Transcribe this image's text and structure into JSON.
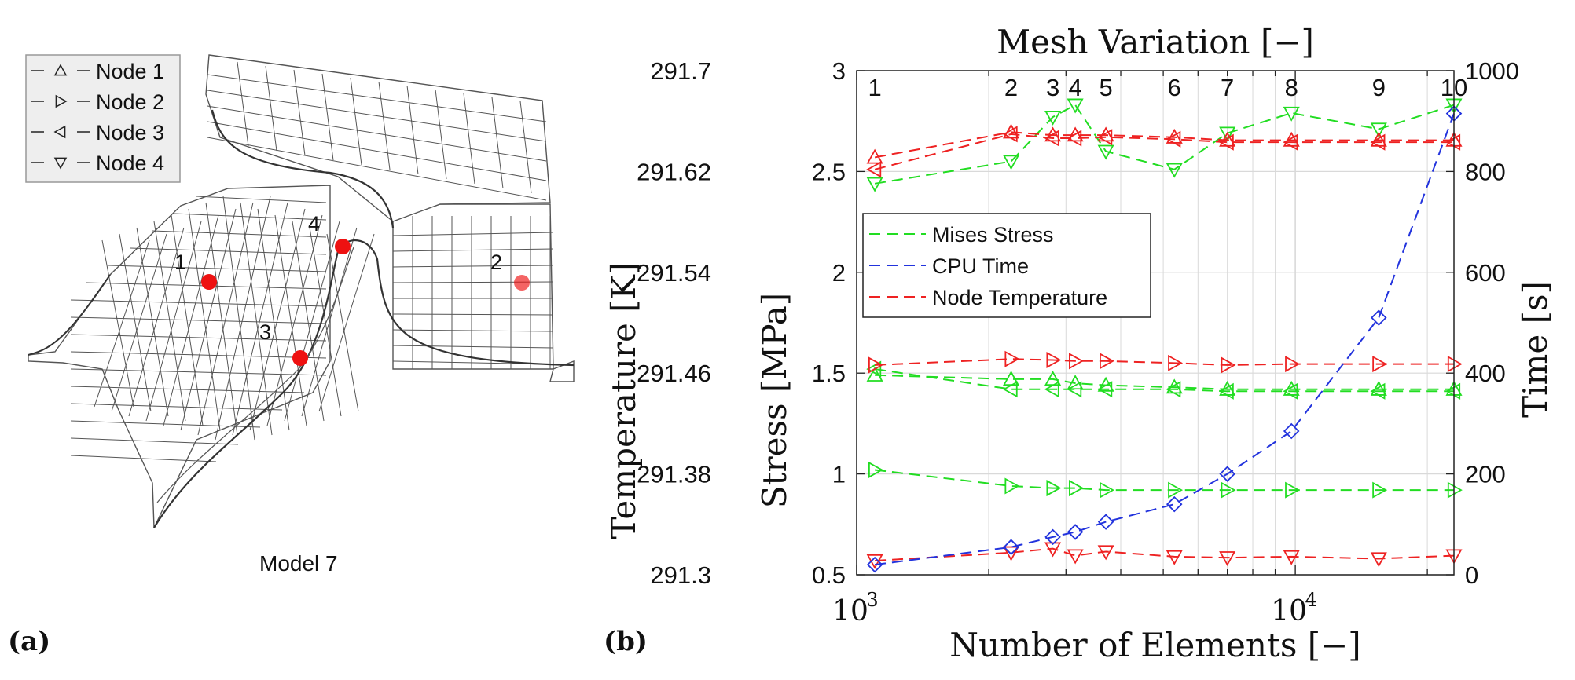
{
  "panel_a": {
    "label": "(a)",
    "model_label": "Model 7",
    "legend": [
      "Node 1",
      "Node 2",
      "Node 3",
      "Node 4"
    ],
    "node_labels": [
      "1",
      "2",
      "3",
      "4"
    ]
  },
  "panel_b": {
    "label": "(b)"
  },
  "colors": {
    "mises": "#22dd22",
    "cpu": "#2233dd",
    "temp": "#ee2222",
    "grid": "#d9d9d9",
    "mesh": "#555555",
    "node": "#ee1111"
  },
  "chart_data": {
    "type": "line",
    "title": "Mesh Variation [−]",
    "xlabel": "Number of Elements [−]",
    "ylabel_left": "Stress [MPa]",
    "ylabel_temperature": "Temperature [K]",
    "ylabel_right": "Time [s]",
    "x_scale": "log",
    "xlim": [
      1000,
      23000
    ],
    "ylim_stress": [
      0.5,
      3
    ],
    "ylim_temperature": [
      291.3,
      291.7
    ],
    "ylim_time": [
      0,
      1000
    ],
    "x_ticks": [
      {
        "v": 1000,
        "base": "10",
        "exp": "3"
      },
      {
        "v": 10000,
        "base": "10",
        "exp": "4"
      }
    ],
    "stress_ticks": [
      "0.5",
      "1",
      "1.5",
      "2",
      "2.5",
      "3"
    ],
    "temperature_ticks": [
      "291.3",
      "291.38",
      "291.46",
      "291.54",
      "291.62",
      "291.7"
    ],
    "time_ticks": [
      "0",
      "200",
      "400",
      "600",
      "800",
      "1000"
    ],
    "mesh_variation": {
      "labels": [
        "1",
        "2",
        "3",
        "4",
        "5",
        "6",
        "7",
        "8",
        "9",
        "10"
      ],
      "x": [
        1100,
        2250,
        2800,
        3150,
        3700,
        5300,
        7000,
        9800,
        15500,
        23000
      ]
    },
    "legend": [
      "Mises Stress",
      "CPU Time",
      "Node Temperature"
    ],
    "x": [
      1100,
      2250,
      2800,
      3150,
      3700,
      5300,
      7000,
      9800,
      15500,
      23000
    ],
    "series": [
      {
        "name": "Mises Stress (Node 1)",
        "group": "mises",
        "marker": "up",
        "values": [
          1.49,
          1.47,
          1.47,
          1.45,
          1.44,
          1.43,
          1.42,
          1.42,
          1.42,
          1.42
        ]
      },
      {
        "name": "Mises Stress (Node 2)",
        "group": "mises",
        "marker": "right",
        "values": [
          1.02,
          0.94,
          0.93,
          0.93,
          0.92,
          0.92,
          0.92,
          0.92,
          0.92,
          0.92
        ]
      },
      {
        "name": "Mises Stress (Node 3)",
        "group": "mises",
        "marker": "left",
        "values": [
          1.52,
          1.42,
          1.42,
          1.42,
          1.42,
          1.42,
          1.41,
          1.41,
          1.41,
          1.41
        ]
      },
      {
        "name": "Mises Stress (Node 4)",
        "group": "mises",
        "marker": "down",
        "values": [
          2.44,
          2.55,
          2.77,
          2.83,
          2.6,
          2.51,
          2.69,
          2.79,
          2.71,
          2.83
        ]
      },
      {
        "name": "Node Temperature (Node 1)",
        "group": "temp",
        "marker": "up",
        "values": [
          291.6312,
          291.6512,
          291.6488,
          291.6488,
          291.6488,
          291.6472,
          291.6448,
          291.6448,
          291.6448,
          291.6448
        ]
      },
      {
        "name": "Node Temperature (Node 2)",
        "group": "temp",
        "marker": "right",
        "values": [
          291.4664,
          291.4712,
          291.4704,
          291.4696,
          291.4696,
          291.468,
          291.4664,
          291.4672,
          291.4672,
          291.4672
        ]
      },
      {
        "name": "Node Temperature (Node 3)",
        "group": "temp",
        "marker": "left",
        "values": [
          291.6216,
          291.6496,
          291.6464,
          291.6464,
          291.6472,
          291.6456,
          291.6432,
          291.6432,
          291.6432,
          291.6432
        ]
      },
      {
        "name": "Node Temperature (Node 4)",
        "group": "temp",
        "marker": "down",
        "values": [
          291.3112,
          291.3176,
          291.3208,
          291.3152,
          291.3184,
          291.3144,
          291.3136,
          291.3144,
          291.3128,
          291.3152
        ]
      },
      {
        "name": "CPU Time",
        "group": "cpu",
        "marker": "diamond",
        "values": [
          20,
          55,
          75,
          85,
          105,
          140,
          200,
          285,
          510,
          915
        ]
      }
    ]
  }
}
